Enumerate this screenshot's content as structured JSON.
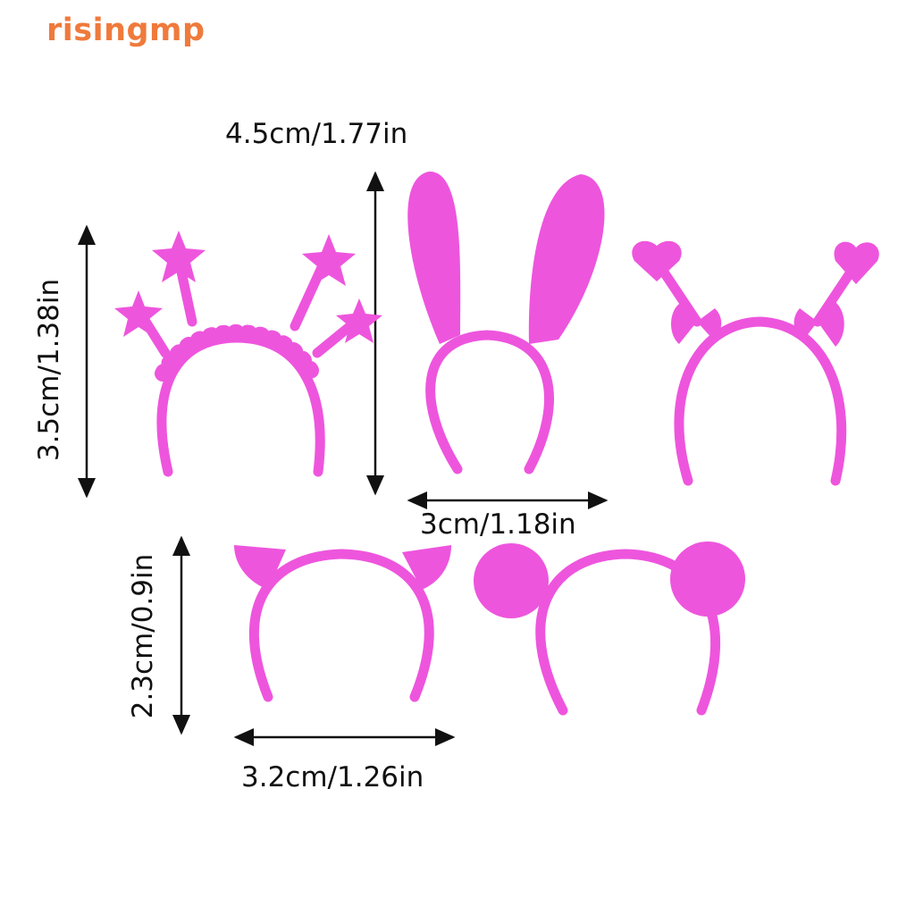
{
  "brand": {
    "watermark": "risingmp",
    "color": "#ef7a3c"
  },
  "product": {
    "color": "#ee55dd",
    "items": [
      "star-headband",
      "bunny-ears-headband",
      "heart-bow-headband",
      "cat-ears-headband",
      "bear-ears-headband"
    ]
  },
  "dimensions": {
    "bunny_height": "4.5cm/1.77in",
    "star_height": "3.5cm/1.38in",
    "bunny_width": "3cm/1.18in",
    "cat_height": "2.3cm/0.9in",
    "cat_width": "3.2cm/1.26in"
  }
}
